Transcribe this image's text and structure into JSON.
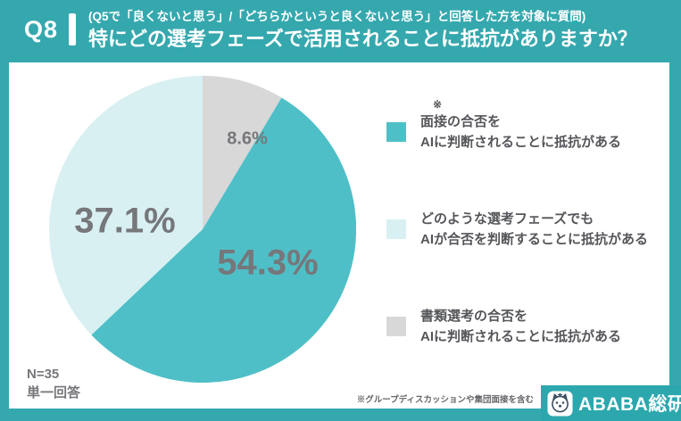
{
  "header": {
    "q_label": "Q8",
    "subtitle": "(Q5で「良くないと思う」/「どちらかというと良くないと思う」と回答した方を対象に質問)",
    "title": "特にどの選考フェーズで活用されることに抵抗がありますか？"
  },
  "chart_data": {
    "type": "pie",
    "title": "特にどの選考フェーズで活用されることに抵抗がありますか？",
    "order": "clockwise from 12 o'clock",
    "slices": [
      {
        "label": "書類選考の合否をAIに判断されることに抵抗がある",
        "value": 8.6,
        "display": "8.6%",
        "color": "#D8D8D8"
      },
      {
        "label": "面接の合否をAIに判断されることに抵抗がある",
        "value": 54.3,
        "display": "54.3%",
        "color": "#4FBFC7"
      },
      {
        "label": "どのような選考フェーズでもAIが合否を判断することに抵抗がある",
        "value": 37.1,
        "display": "37.1%",
        "color": "#D9F0F2"
      }
    ],
    "legend_position": "right",
    "n": "N=35",
    "answer_type": "単一回答"
  },
  "legend": {
    "items": [
      {
        "note_mark": "※",
        "line1": "面接の合否を",
        "line2": "AIに判断されることに抵抗がある",
        "color": "#4FBFC7"
      },
      {
        "note_mark": "",
        "line1": "どのような選考フェーズでも",
        "line2": "AIが合否を判断することに抵抗がある",
        "color": "#D9F0F2"
      },
      {
        "note_mark": "",
        "line1": "書類選考の合否を",
        "line2": "AIに判断されることに抵抗がある",
        "color": "#D8D8D8"
      }
    ]
  },
  "meta": {
    "n_label": "N=35",
    "answer_type": "単一回答"
  },
  "footer": {
    "note": "※グループディスカッションや集団面接を含む",
    "brand": "ABABA総研"
  },
  "colors": {
    "frame_teal": "#35A8AE",
    "pie_teal": "#4FBFC7",
    "pie_light_teal": "#D9F0F2",
    "pie_gray": "#D8D8D8",
    "label_gray": "#76777B",
    "legend_text": "#55565A"
  }
}
